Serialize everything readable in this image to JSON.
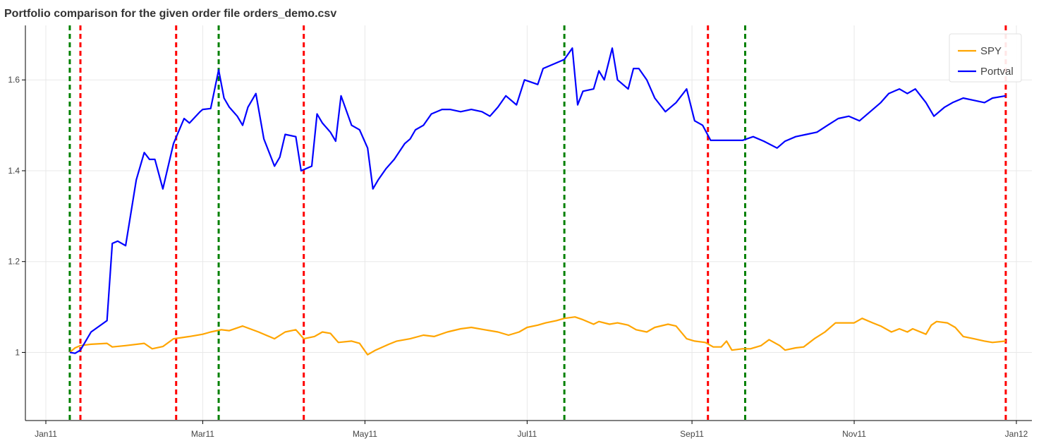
{
  "chart_data": {
    "type": "line",
    "title": "Portfolio comparison for the given order file orders_demo.csv",
    "xlabel": "",
    "ylabel": "",
    "x_range": [
      "2011-01-01",
      "2012-01-01"
    ],
    "ylim": [
      0.85,
      1.72
    ],
    "grid": true,
    "legend_position": "top-right",
    "x_ticks": [
      {
        "date": "2011-01-01",
        "label": "Jan11"
      },
      {
        "date": "2011-03-01",
        "label": "Mar11"
      },
      {
        "date": "2011-05-01",
        "label": "May11"
      },
      {
        "date": "2011-07-01",
        "label": "Jul11"
      },
      {
        "date": "2011-09-01",
        "label": "Sep11"
      },
      {
        "date": "2011-11-01",
        "label": "Nov11"
      },
      {
        "date": "2012-01-01",
        "label": "Jan12"
      }
    ],
    "y_ticks": [
      {
        "value": 1.0,
        "label": "1"
      },
      {
        "value": 1.2,
        "label": "1.2"
      },
      {
        "value": 1.4,
        "label": "1.4"
      },
      {
        "value": 1.6,
        "label": "1.6"
      }
    ],
    "series": [
      {
        "name": "SPY",
        "color": "#ffa500",
        "points": [
          [
            "2011-01-10",
            1.0
          ],
          [
            "2011-01-12",
            1.01
          ],
          [
            "2011-01-14",
            1.015
          ],
          [
            "2011-01-18",
            1.018
          ],
          [
            "2011-01-24",
            1.02
          ],
          [
            "2011-01-26",
            1.012
          ],
          [
            "2011-01-31",
            1.015
          ],
          [
            "2011-02-07",
            1.02
          ],
          [
            "2011-02-10",
            1.008
          ],
          [
            "2011-02-14",
            1.013
          ],
          [
            "2011-02-18",
            1.03
          ],
          [
            "2011-02-24",
            1.035
          ],
          [
            "2011-03-01",
            1.04
          ],
          [
            "2011-03-04",
            1.045
          ],
          [
            "2011-03-08",
            1.05
          ],
          [
            "2011-03-11",
            1.048
          ],
          [
            "2011-03-16",
            1.058
          ],
          [
            "2011-03-22",
            1.045
          ],
          [
            "2011-03-28",
            1.03
          ],
          [
            "2011-04-01",
            1.045
          ],
          [
            "2011-04-05",
            1.05
          ],
          [
            "2011-04-08",
            1.03
          ],
          [
            "2011-04-12",
            1.035
          ],
          [
            "2011-04-15",
            1.045
          ],
          [
            "2011-04-18",
            1.042
          ],
          [
            "2011-04-21",
            1.022
          ],
          [
            "2011-04-26",
            1.025
          ],
          [
            "2011-04-29",
            1.02
          ],
          [
            "2011-05-02",
            0.995
          ],
          [
            "2011-05-05",
            1.005
          ],
          [
            "2011-05-10",
            1.018
          ],
          [
            "2011-05-13",
            1.025
          ],
          [
            "2011-05-18",
            1.03
          ],
          [
            "2011-05-23",
            1.038
          ],
          [
            "2011-05-27",
            1.035
          ],
          [
            "2011-06-01",
            1.045
          ],
          [
            "2011-06-06",
            1.052
          ],
          [
            "2011-06-10",
            1.055
          ],
          [
            "2011-06-15",
            1.05
          ],
          [
            "2011-06-20",
            1.045
          ],
          [
            "2011-06-24",
            1.038
          ],
          [
            "2011-06-28",
            1.045
          ],
          [
            "2011-07-01",
            1.055
          ],
          [
            "2011-07-05",
            1.06
          ],
          [
            "2011-07-08",
            1.065
          ],
          [
            "2011-07-12",
            1.07
          ],
          [
            "2011-07-15",
            1.075
          ],
          [
            "2011-07-19",
            1.078
          ],
          [
            "2011-07-22",
            1.072
          ],
          [
            "2011-07-26",
            1.062
          ],
          [
            "2011-07-28",
            1.068
          ],
          [
            "2011-08-01",
            1.062
          ],
          [
            "2011-08-04",
            1.065
          ],
          [
            "2011-08-08",
            1.06
          ],
          [
            "2011-08-11",
            1.05
          ],
          [
            "2011-08-15",
            1.045
          ],
          [
            "2011-08-18",
            1.055
          ],
          [
            "2011-08-23",
            1.062
          ],
          [
            "2011-08-26",
            1.058
          ],
          [
            "2011-08-30",
            1.03
          ],
          [
            "2011-09-02",
            1.025
          ],
          [
            "2011-09-06",
            1.022
          ],
          [
            "2011-09-09",
            1.012
          ],
          [
            "2011-09-12",
            1.012
          ],
          [
            "2011-09-14",
            1.025
          ],
          [
            "2011-09-16",
            1.005
          ],
          [
            "2011-09-20",
            1.008
          ],
          [
            "2011-09-23",
            1.008
          ],
          [
            "2011-09-27",
            1.015
          ],
          [
            "2011-09-30",
            1.028
          ],
          [
            "2011-10-04",
            1.015
          ],
          [
            "2011-10-06",
            1.005
          ],
          [
            "2011-10-10",
            1.01
          ],
          [
            "2011-10-13",
            1.012
          ],
          [
            "2011-10-17",
            1.03
          ],
          [
            "2011-10-21",
            1.045
          ],
          [
            "2011-10-25",
            1.065
          ],
          [
            "2011-10-28",
            1.065
          ],
          [
            "2011-11-01",
            1.065
          ],
          [
            "2011-11-04",
            1.075
          ],
          [
            "2011-11-08",
            1.065
          ],
          [
            "2011-11-11",
            1.058
          ],
          [
            "2011-11-15",
            1.045
          ],
          [
            "2011-11-18",
            1.052
          ],
          [
            "2011-11-21",
            1.045
          ],
          [
            "2011-11-23",
            1.052
          ],
          [
            "2011-11-28",
            1.04
          ],
          [
            "2011-11-30",
            1.06
          ],
          [
            "2011-12-02",
            1.068
          ],
          [
            "2011-12-06",
            1.065
          ],
          [
            "2011-12-09",
            1.055
          ],
          [
            "2011-12-12",
            1.035
          ],
          [
            "2011-12-16",
            1.03
          ],
          [
            "2011-12-20",
            1.025
          ],
          [
            "2011-12-23",
            1.022
          ],
          [
            "2011-12-28",
            1.025
          ]
        ]
      },
      {
        "name": "Portval",
        "color": "#0000ff",
        "points": [
          [
            "2011-01-10",
            1.0
          ],
          [
            "2011-01-12",
            0.998
          ],
          [
            "2011-01-14",
            1.005
          ],
          [
            "2011-01-18",
            1.045
          ],
          [
            "2011-01-24",
            1.07
          ],
          [
            "2011-01-26",
            1.24
          ],
          [
            "2011-01-28",
            1.245
          ],
          [
            "2011-01-31",
            1.235
          ],
          [
            "2011-02-04",
            1.38
          ],
          [
            "2011-02-07",
            1.44
          ],
          [
            "2011-02-09",
            1.425
          ],
          [
            "2011-02-11",
            1.425
          ],
          [
            "2011-02-14",
            1.36
          ],
          [
            "2011-02-18",
            1.46
          ],
          [
            "2011-02-22",
            1.515
          ],
          [
            "2011-02-24",
            1.505
          ],
          [
            "2011-02-28",
            1.53
          ],
          [
            "2011-03-01",
            1.535
          ],
          [
            "2011-03-04",
            1.537
          ],
          [
            "2011-03-07",
            1.622
          ],
          [
            "2011-03-09",
            1.56
          ],
          [
            "2011-03-11",
            1.54
          ],
          [
            "2011-03-14",
            1.52
          ],
          [
            "2011-03-16",
            1.5
          ],
          [
            "2011-03-18",
            1.54
          ],
          [
            "2011-03-21",
            1.57
          ],
          [
            "2011-03-24",
            1.47
          ],
          [
            "2011-03-28",
            1.41
          ],
          [
            "2011-03-30",
            1.43
          ],
          [
            "2011-04-01",
            1.48
          ],
          [
            "2011-04-05",
            1.475
          ],
          [
            "2011-04-07",
            1.4
          ],
          [
            "2011-04-11",
            1.41
          ],
          [
            "2011-04-13",
            1.525
          ],
          [
            "2011-04-15",
            1.505
          ],
          [
            "2011-04-18",
            1.485
          ],
          [
            "2011-04-20",
            1.465
          ],
          [
            "2011-04-22",
            1.565
          ],
          [
            "2011-04-26",
            1.5
          ],
          [
            "2011-04-29",
            1.49
          ],
          [
            "2011-05-02",
            1.45
          ],
          [
            "2011-05-04",
            1.36
          ],
          [
            "2011-05-06",
            1.38
          ],
          [
            "2011-05-09",
            1.405
          ],
          [
            "2011-05-12",
            1.425
          ],
          [
            "2011-05-16",
            1.46
          ],
          [
            "2011-05-18",
            1.47
          ],
          [
            "2011-05-20",
            1.49
          ],
          [
            "2011-05-23",
            1.5
          ],
          [
            "2011-05-26",
            1.525
          ],
          [
            "2011-05-30",
            1.535
          ],
          [
            "2011-06-02",
            1.535
          ],
          [
            "2011-06-06",
            1.53
          ],
          [
            "2011-06-10",
            1.535
          ],
          [
            "2011-06-14",
            1.53
          ],
          [
            "2011-06-17",
            1.52
          ],
          [
            "2011-06-20",
            1.54
          ],
          [
            "2011-06-23",
            1.565
          ],
          [
            "2011-06-27",
            1.545
          ],
          [
            "2011-06-30",
            1.6
          ],
          [
            "2011-07-05",
            1.59
          ],
          [
            "2011-07-07",
            1.625
          ],
          [
            "2011-07-11",
            1.635
          ],
          [
            "2011-07-13",
            1.64
          ],
          [
            "2011-07-15",
            1.645
          ],
          [
            "2011-07-18",
            1.67
          ],
          [
            "2011-07-20",
            1.545
          ],
          [
            "2011-07-22",
            1.575
          ],
          [
            "2011-07-26",
            1.58
          ],
          [
            "2011-07-28",
            1.62
          ],
          [
            "2011-07-30",
            1.6
          ],
          [
            "2011-08-02",
            1.67
          ],
          [
            "2011-08-04",
            1.6
          ],
          [
            "2011-08-08",
            1.58
          ],
          [
            "2011-08-10",
            1.625
          ],
          [
            "2011-08-12",
            1.625
          ],
          [
            "2011-08-15",
            1.6
          ],
          [
            "2011-08-18",
            1.56
          ],
          [
            "2011-08-22",
            1.53
          ],
          [
            "2011-08-26",
            1.55
          ],
          [
            "2011-08-30",
            1.58
          ],
          [
            "2011-09-02",
            1.51
          ],
          [
            "2011-09-05",
            1.5
          ],
          [
            "2011-09-08",
            1.467
          ],
          [
            "2011-09-12",
            1.467
          ],
          [
            "2011-09-16",
            1.467
          ],
          [
            "2011-09-20",
            1.467
          ],
          [
            "2011-09-24",
            1.475
          ],
          [
            "2011-09-28",
            1.465
          ],
          [
            "2011-10-03",
            1.45
          ],
          [
            "2011-10-06",
            1.465
          ],
          [
            "2011-10-10",
            1.475
          ],
          [
            "2011-10-14",
            1.48
          ],
          [
            "2011-10-18",
            1.485
          ],
          [
            "2011-10-22",
            1.5
          ],
          [
            "2011-10-26",
            1.515
          ],
          [
            "2011-10-30",
            1.52
          ],
          [
            "2011-11-03",
            1.51
          ],
          [
            "2011-11-07",
            1.53
          ],
          [
            "2011-11-11",
            1.55
          ],
          [
            "2011-11-14",
            1.57
          ],
          [
            "2011-11-18",
            1.58
          ],
          [
            "2011-11-21",
            1.57
          ],
          [
            "2011-11-24",
            1.58
          ],
          [
            "2011-11-28",
            1.55
          ],
          [
            "2011-12-01",
            1.52
          ],
          [
            "2011-12-05",
            1.54
          ],
          [
            "2011-12-08",
            1.55
          ],
          [
            "2011-12-12",
            1.56
          ],
          [
            "2011-12-16",
            1.555
          ],
          [
            "2011-12-20",
            1.55
          ],
          [
            "2011-12-23",
            1.56
          ],
          [
            "2011-12-28",
            1.565
          ]
        ]
      }
    ],
    "vertical_lines": [
      {
        "date": "2011-01-10",
        "color": "#008000"
      },
      {
        "date": "2011-01-14",
        "color": "#ff0000"
      },
      {
        "date": "2011-02-19",
        "color": "#ff0000"
      },
      {
        "date": "2011-03-07",
        "color": "#008000"
      },
      {
        "date": "2011-04-08",
        "color": "#ff0000"
      },
      {
        "date": "2011-07-15",
        "color": "#008000"
      },
      {
        "date": "2011-09-07",
        "color": "#ff0000"
      },
      {
        "date": "2011-09-21",
        "color": "#008000"
      },
      {
        "date": "2011-12-28",
        "color": "#ff0000"
      }
    ]
  }
}
